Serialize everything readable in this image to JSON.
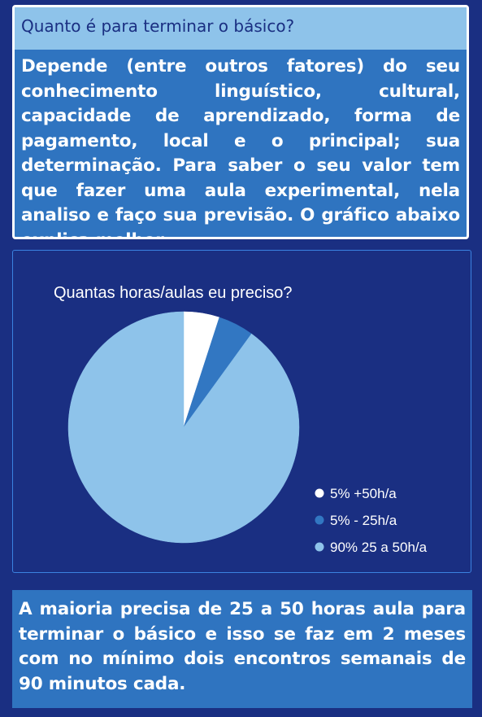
{
  "header": {
    "title": "Quanto é para terminar o básico?",
    "body": "Depende (entre outros fatores) do seu conhecimento linguístico, cultural, capacidade de aprendizado, forma de pagamento, local e o principal; sua determinação. Para saber o seu valor tem que fazer uma aula experimental, nela analiso e faço sua previsão. O gráfico abaixo explica melhor."
  },
  "footer": {
    "text": "A maioria precisa de 25 a 50 horas aula para terminar o básico e isso se faz em 2 meses com no mínimo dois encontros semanais de 90 minutos cada."
  },
  "colors": {
    "background": "#1a2f82",
    "card": "#2f74c0",
    "header": "#8ec3ea"
  },
  "chart_data": {
    "type": "pie",
    "title": "Quantas horas/aulas eu preciso?",
    "legend_position": "bottom-right",
    "slices": [
      {
        "label": "5% +50h/a",
        "value": 5,
        "color": "#ffffff"
      },
      {
        "label": "5% - 25h/a",
        "value": 5,
        "color": "#3277c2"
      },
      {
        "label": "90% 25 a 50h/a",
        "value": 90,
        "color": "#8ec3ea"
      }
    ]
  }
}
